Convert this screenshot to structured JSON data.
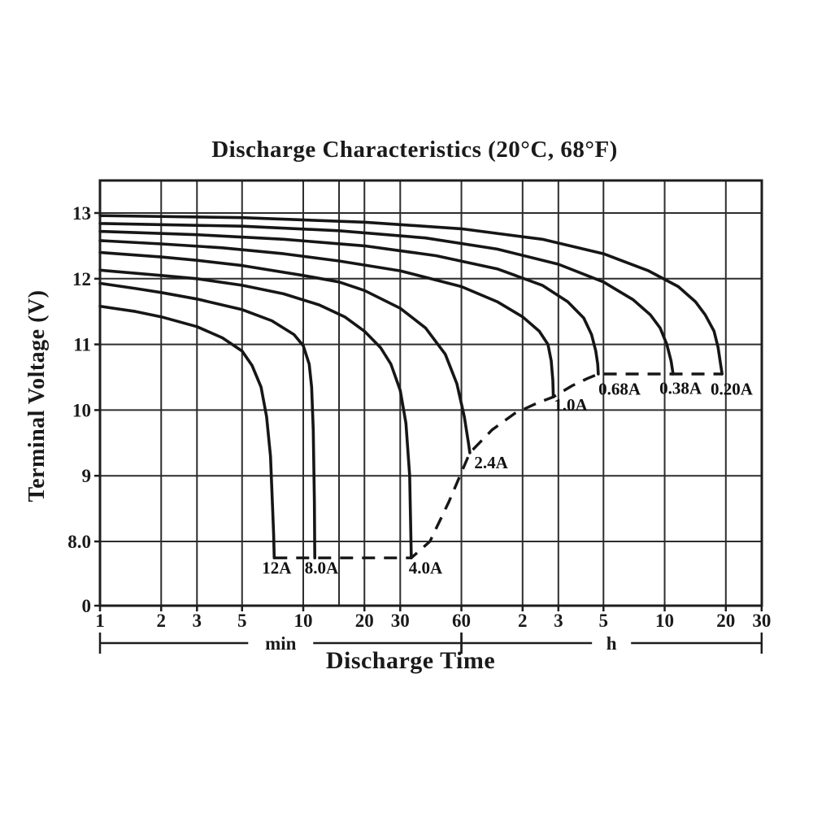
{
  "chart_data": {
    "type": "line",
    "title": "Discharge Characteristics (20°C, 68°F)",
    "xlabel": "Discharge Time",
    "ylabel": "Terminal Voltage (V)",
    "x_scale": "log10 of time in minutes",
    "grid": "on",
    "ink_color": "#1c1c1c",
    "y_ticks": [
      {
        "label": "13",
        "volts": 13
      },
      {
        "label": "12",
        "volts": 12
      },
      {
        "label": "11",
        "volts": 11
      },
      {
        "label": "10",
        "volts": 10
      },
      {
        "label": "9",
        "volts": 9
      },
      {
        "label": "8.0",
        "volts": 8
      },
      {
        "label": "0",
        "volts": 0
      }
    ],
    "y_gridlines_volts": [
      13,
      12,
      11,
      10,
      9,
      8
    ],
    "x_ticks": [
      {
        "label": "1",
        "t_min": 1
      },
      {
        "label": "2",
        "t_min": 2
      },
      {
        "label": "3",
        "t_min": 3
      },
      {
        "label": "5",
        "t_min": 5
      },
      {
        "label": "10",
        "t_min": 10
      },
      {
        "label": "20",
        "t_min": 20
      },
      {
        "label": "30",
        "t_min": 30
      },
      {
        "label": "60",
        "t_min": 60
      },
      {
        "label": "2",
        "t_min": 120
      },
      {
        "label": "3",
        "t_min": 180
      },
      {
        "label": "5",
        "t_min": 300
      },
      {
        "label": "10",
        "t_min": 600
      },
      {
        "label": "20",
        "t_min": 1200
      },
      {
        "label": "30",
        "t_min": 1800
      }
    ],
    "x_gridlines_min": [
      1,
      2,
      3,
      5,
      10,
      15,
      20,
      30,
      60,
      120,
      180,
      300,
      600,
      1200,
      1800
    ],
    "x_unit_sections": [
      {
        "label": "min",
        "from_min": 1,
        "to_min": 60
      },
      {
        "label": "h",
        "from_min": 60,
        "to_min": 1800
      }
    ],
    "series": [
      {
        "label": "12A",
        "amps": 12,
        "points_t_min_v": [
          [
            1,
            11.58
          ],
          [
            1.5,
            11.5
          ],
          [
            2,
            11.42
          ],
          [
            3,
            11.27
          ],
          [
            4,
            11.1
          ],
          [
            5,
            10.9
          ],
          [
            5.6,
            10.68
          ],
          [
            6.2,
            10.35
          ],
          [
            6.6,
            9.9
          ],
          [
            6.9,
            9.3
          ],
          [
            7.05,
            8.6
          ],
          [
            7.15,
            8.1
          ],
          [
            7.2,
            7.75
          ]
        ],
        "label_anchor_t_v": [
          7.4,
          7.6
        ]
      },
      {
        "label": "8.0A",
        "amps": 8,
        "points_t_min_v": [
          [
            1,
            11.93
          ],
          [
            1.5,
            11.85
          ],
          [
            2,
            11.79
          ],
          [
            3,
            11.69
          ],
          [
            5,
            11.53
          ],
          [
            7,
            11.36
          ],
          [
            9,
            11.15
          ],
          [
            10,
            10.98
          ],
          [
            10.7,
            10.7
          ],
          [
            11,
            10.35
          ],
          [
            11.2,
            9.7
          ],
          [
            11.35,
            8.6
          ],
          [
            11.4,
            7.75
          ]
        ],
        "label_anchor_t_v": [
          12.3,
          7.6
        ]
      },
      {
        "label": "4.0A",
        "amps": 4,
        "points_t_min_v": [
          [
            1,
            12.13
          ],
          [
            2,
            12.05
          ],
          [
            3,
            12.0
          ],
          [
            5,
            11.9
          ],
          [
            8,
            11.77
          ],
          [
            12,
            11.6
          ],
          [
            16,
            11.42
          ],
          [
            20,
            11.2
          ],
          [
            24,
            10.95
          ],
          [
            27,
            10.7
          ],
          [
            30,
            10.3
          ],
          [
            32,
            9.8
          ],
          [
            33.4,
            9.0
          ],
          [
            34,
            7.75
          ]
        ],
        "label_anchor_t_v": [
          40,
          7.6
        ]
      },
      {
        "label": "2.4A",
        "amps": 2.4,
        "points_t_min_v": [
          [
            1,
            12.4
          ],
          [
            2,
            12.33
          ],
          [
            3,
            12.28
          ],
          [
            5,
            12.2
          ],
          [
            10,
            12.05
          ],
          [
            15,
            11.95
          ],
          [
            20,
            11.82
          ],
          [
            30,
            11.55
          ],
          [
            40,
            11.25
          ],
          [
            50,
            10.85
          ],
          [
            57,
            10.4
          ],
          [
            62,
            9.9
          ],
          [
            65,
            9.5
          ],
          [
            66,
            9.35
          ]
        ],
        "label_anchor_t_v": [
          84,
          9.2
        ]
      },
      {
        "label": "1.0A",
        "amps": 1,
        "points_t_min_v": [
          [
            1,
            12.58
          ],
          [
            2,
            12.53
          ],
          [
            4,
            12.47
          ],
          [
            8,
            12.38
          ],
          [
            15,
            12.27
          ],
          [
            30,
            12.12
          ],
          [
            60,
            11.88
          ],
          [
            90,
            11.65
          ],
          [
            120,
            11.42
          ],
          [
            145,
            11.2
          ],
          [
            160,
            11.0
          ],
          [
            166,
            10.75
          ],
          [
            169,
            10.45
          ],
          [
            170,
            10.2
          ]
        ],
        "label_anchor_t_v": [
          207,
          10.08
        ]
      },
      {
        "label": "0.68A",
        "amps": 0.68,
        "points_t_min_v": [
          [
            1,
            12.72
          ],
          [
            3,
            12.67
          ],
          [
            8,
            12.6
          ],
          [
            20,
            12.5
          ],
          [
            45,
            12.35
          ],
          [
            90,
            12.15
          ],
          [
            150,
            11.9
          ],
          [
            200,
            11.65
          ],
          [
            240,
            11.4
          ],
          [
            262,
            11.15
          ],
          [
            275,
            10.9
          ],
          [
            281,
            10.7
          ],
          [
            283,
            10.55
          ]
        ],
        "label_anchor_t_v": [
          360,
          10.32
        ]
      },
      {
        "label": "0.38A",
        "amps": 0.38,
        "points_t_min_v": [
          [
            1,
            12.84
          ],
          [
            5,
            12.8
          ],
          [
            15,
            12.73
          ],
          [
            40,
            12.62
          ],
          [
            90,
            12.45
          ],
          [
            180,
            12.22
          ],
          [
            300,
            11.95
          ],
          [
            420,
            11.68
          ],
          [
            510,
            11.45
          ],
          [
            570,
            11.25
          ],
          [
            615,
            11.0
          ],
          [
            645,
            10.75
          ],
          [
            660,
            10.55
          ]
        ],
        "label_anchor_t_v": [
          718,
          10.33
        ]
      },
      {
        "label": "0.20A",
        "amps": 0.2,
        "points_t_min_v": [
          [
            1,
            12.96
          ],
          [
            5,
            12.93
          ],
          [
            20,
            12.86
          ],
          [
            60,
            12.76
          ],
          [
            150,
            12.6
          ],
          [
            300,
            12.38
          ],
          [
            500,
            12.12
          ],
          [
            700,
            11.88
          ],
          [
            850,
            11.65
          ],
          [
            950,
            11.45
          ],
          [
            1050,
            11.2
          ],
          [
            1100,
            10.95
          ],
          [
            1130,
            10.7
          ],
          [
            1150,
            10.55
          ]
        ],
        "label_anchor_t_v": [
          1282,
          10.32
        ]
      }
    ],
    "cutoff_locus": {
      "style": "dashed",
      "points_t_min_v": [
        [
          7.2,
          7.75
        ],
        [
          34,
          7.75
        ],
        [
          42,
          8.0
        ],
        [
          52,
          8.6
        ],
        [
          60,
          9.05
        ],
        [
          66,
          9.35
        ],
        [
          85,
          9.7
        ],
        [
          110,
          9.95
        ],
        [
          140,
          10.1
        ],
        [
          170,
          10.2
        ],
        [
          210,
          10.37
        ],
        [
          250,
          10.48
        ],
        [
          283,
          10.55
        ],
        [
          1150,
          10.55
        ]
      ]
    }
  }
}
